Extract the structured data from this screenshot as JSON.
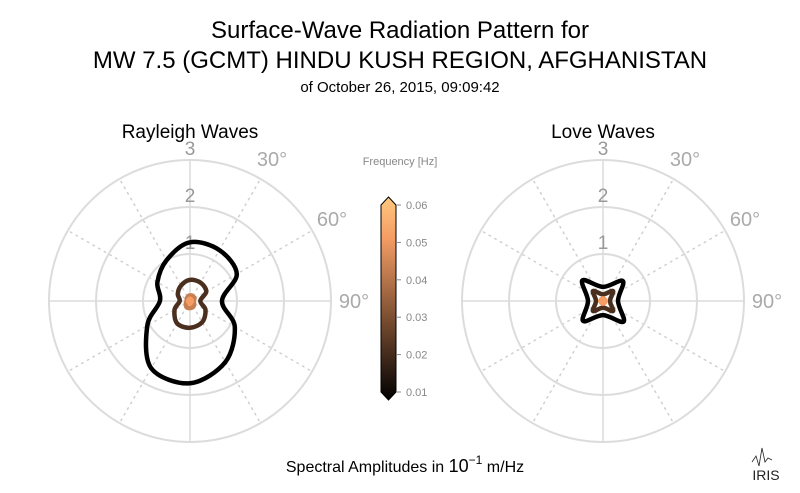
{
  "chart_data": {
    "type": "polar",
    "title": "Surface-Wave Radiation Pattern for",
    "title2": "MW 7.5 (GCMT) HINDU KUSH REGION, AFGHANISTAN",
    "subtitle": "of October 26, 2015, 09:09:42",
    "xlabel_prefix": "Spectral Amplitudes in ",
    "xlabel_power": "10",
    "xlabel_exp": "−1",
    "xlabel_suffix": " m/Hz",
    "logo_text": "IRIS",
    "radial_ticks": [
      "1",
      "2",
      "3"
    ],
    "radial_max": 3,
    "angle_labels": [
      "30°",
      "60°",
      "90°"
    ],
    "colorbar": {
      "label": "Frequency [Hz]",
      "range": [
        0.01,
        0.06
      ],
      "ticks": [
        "0.01",
        "0.02",
        "0.03",
        "0.04",
        "0.05",
        "0.06"
      ],
      "colors": [
        "#000000",
        "#3d271a",
        "#7a4e31",
        "#b8764b",
        "#f59d64",
        "#ffc77f"
      ]
    },
    "panels": [
      {
        "title": "Rayleigh Waves",
        "series": [
          {
            "frequency": 0.01,
            "color": "#000000",
            "azimuth": [
              0,
              30,
              60,
              90,
              120,
              150,
              180,
              210,
              240,
              270,
              300,
              330
            ],
            "amplitude": [
              1.25,
              1.25,
              1.15,
              0.68,
              1.1,
              1.5,
              1.75,
              1.65,
              1.05,
              0.64,
              0.8,
              1.0
            ]
          },
          {
            "frequency": 0.02,
            "color": "#4a2f1f",
            "azimuth": [
              0,
              30,
              60,
              90,
              120,
              150,
              180,
              210,
              240,
              270,
              300,
              330
            ],
            "amplitude": [
              0.45,
              0.45,
              0.4,
              0.22,
              0.38,
              0.52,
              0.57,
              0.55,
              0.38,
              0.22,
              0.3,
              0.38
            ]
          },
          {
            "frequency": 0.04,
            "color": "#c77e50",
            "azimuth": [
              0,
              30,
              60,
              90,
              120,
              150,
              180,
              210,
              240,
              270,
              300,
              330
            ],
            "amplitude": [
              0.12,
              0.12,
              0.11,
              0.07,
              0.1,
              0.14,
              0.15,
              0.15,
              0.1,
              0.07,
              0.08,
              0.1
            ]
          },
          {
            "frequency": 0.05,
            "color": "#f59d64",
            "azimuth": [
              0,
              90,
              180,
              270
            ],
            "amplitude": [
              0.05,
              0.04,
              0.06,
              0.04
            ]
          }
        ]
      },
      {
        "title": "Love Waves",
        "series": [
          {
            "frequency": 0.01,
            "color": "#000000",
            "azimuth": [
              0,
              45,
              90,
              135,
              180,
              225,
              270,
              315
            ],
            "amplitude": [
              0.3,
              0.6,
              0.32,
              0.62,
              0.3,
              0.6,
              0.32,
              0.62
            ]
          },
          {
            "frequency": 0.02,
            "color": "#4a2f1f",
            "azimuth": [
              0,
              45,
              90,
              135,
              180,
              225,
              270,
              315
            ],
            "amplitude": [
              0.14,
              0.3,
              0.15,
              0.3,
              0.14,
              0.3,
              0.15,
              0.3
            ]
          },
          {
            "frequency": 0.05,
            "color": "#f59d64",
            "azimuth": [
              0,
              90,
              180,
              270
            ],
            "amplitude": [
              0.06,
              0.06,
              0.06,
              0.06
            ]
          }
        ]
      }
    ]
  }
}
